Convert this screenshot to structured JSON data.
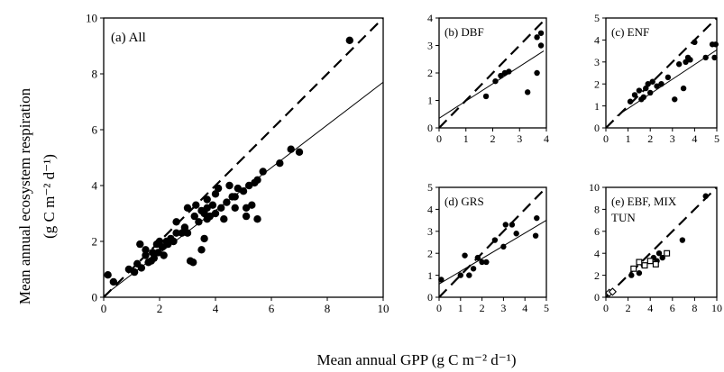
{
  "figure": {
    "ylabel_line1": "Mean annual ecosystem respiration",
    "ylabel_line2": "(g C m⁻² d⁻¹)",
    "xlabel": "Mean annual GPP (g C m⁻² d⁻¹)"
  },
  "chart_data": [
    {
      "id": "a",
      "type": "scatter",
      "label": "(a) All",
      "xlim": [
        0,
        10
      ],
      "ylim": [
        0,
        10
      ],
      "xticks": [
        0,
        2,
        4,
        6,
        8,
        10
      ],
      "yticks": [
        0,
        2,
        4,
        6,
        8,
        10
      ],
      "one_to_one": true,
      "fit": [
        [
          0,
          0.05
        ],
        [
          10,
          7.7
        ]
      ],
      "markers": [
        {
          "style": "filled",
          "points": [
            [
              0.15,
              0.8
            ],
            [
              0.35,
              0.55
            ],
            [
              0.9,
              1.0
            ],
            [
              1.1,
              0.9
            ],
            [
              1.2,
              1.2
            ],
            [
              1.3,
              1.9
            ],
            [
              1.35,
              1.05
            ],
            [
              1.5,
              1.5
            ],
            [
              1.5,
              1.7
            ],
            [
              1.6,
              1.25
            ],
            [
              1.7,
              1.3
            ],
            [
              1.75,
              1.6
            ],
            [
              1.8,
              1.4
            ],
            [
              1.9,
              1.9
            ],
            [
              1.95,
              1.6
            ],
            [
              2.0,
              2.0
            ],
            [
              2.1,
              1.8
            ],
            [
              2.15,
              1.5
            ],
            [
              2.25,
              2.0
            ],
            [
              2.3,
              1.9
            ],
            [
              2.4,
              2.1
            ],
            [
              2.5,
              2.0
            ],
            [
              2.6,
              2.3
            ],
            [
              2.6,
              2.7
            ],
            [
              2.8,
              2.3
            ],
            [
              2.9,
              2.5
            ],
            [
              3.0,
              2.3
            ],
            [
              3.0,
              3.2
            ],
            [
              3.1,
              1.3
            ],
            [
              3.2,
              1.25
            ],
            [
              3.25,
              2.9
            ],
            [
              3.3,
              3.3
            ],
            [
              3.4,
              2.7
            ],
            [
              3.5,
              3.1
            ],
            [
              3.5,
              1.7
            ],
            [
              3.6,
              2.1
            ],
            [
              3.6,
              3.0
            ],
            [
              3.7,
              2.8
            ],
            [
              3.7,
              3.2
            ],
            [
              3.7,
              3.5
            ],
            [
              3.8,
              2.9
            ],
            [
              3.9,
              3.3
            ],
            [
              4.0,
              3.0
            ],
            [
              4.0,
              3.7
            ],
            [
              4.1,
              3.9
            ],
            [
              4.2,
              3.2
            ],
            [
              4.3,
              2.8
            ],
            [
              4.4,
              3.4
            ],
            [
              4.5,
              4.0
            ],
            [
              4.6,
              3.6
            ],
            [
              4.7,
              3.2
            ],
            [
              4.7,
              3.6
            ],
            [
              4.8,
              3.9
            ],
            [
              5.0,
              3.8
            ],
            [
              5.1,
              2.9
            ],
            [
              5.1,
              3.2
            ],
            [
              5.2,
              4.0
            ],
            [
              5.3,
              3.3
            ],
            [
              5.4,
              4.1
            ],
            [
              5.5,
              2.8
            ],
            [
              5.5,
              4.2
            ],
            [
              5.7,
              4.5
            ],
            [
              6.3,
              4.8
            ],
            [
              6.7,
              5.3
            ],
            [
              7.0,
              5.2
            ],
            [
              8.8,
              9.2
            ]
          ]
        }
      ]
    },
    {
      "id": "b",
      "type": "scatter",
      "label": "(b) DBF",
      "xlim": [
        0,
        4
      ],
      "ylim": [
        0,
        4
      ],
      "xticks": [
        0,
        1,
        2,
        3,
        4
      ],
      "yticks": [
        0,
        1,
        2,
        3,
        4
      ],
      "one_to_one": true,
      "fit": [
        [
          0,
          0.35
        ],
        [
          3.9,
          2.8
        ]
      ],
      "markers": [
        {
          "style": "filled",
          "points": [
            [
              1.75,
              1.15
            ],
            [
              2.1,
              1.7
            ],
            [
              2.3,
              1.9
            ],
            [
              2.45,
              2.0
            ],
            [
              2.6,
              2.05
            ],
            [
              3.3,
              1.3
            ],
            [
              3.65,
              2.0
            ],
            [
              3.65,
              3.3
            ],
            [
              3.8,
              3.0
            ],
            [
              3.8,
              3.45
            ]
          ]
        }
      ]
    },
    {
      "id": "c",
      "type": "scatter",
      "label": "(c) ENF",
      "xlim": [
        0,
        5
      ],
      "ylim": [
        0,
        5
      ],
      "xticks": [
        0,
        1,
        2,
        3,
        4,
        5
      ],
      "yticks": [
        0,
        1,
        2,
        3,
        4,
        5
      ],
      "one_to_one": true,
      "fit": [
        [
          0.5,
          0.55
        ],
        [
          5,
          3.55
        ]
      ],
      "markers": [
        {
          "style": "filled",
          "points": [
            [
              1.1,
              1.2
            ],
            [
              1.3,
              1.5
            ],
            [
              1.5,
              1.7
            ],
            [
              1.6,
              1.3
            ],
            [
              1.7,
              1.4
            ],
            [
              1.8,
              1.8
            ],
            [
              1.9,
              2.0
            ],
            [
              2.0,
              1.6
            ],
            [
              2.1,
              2.1
            ],
            [
              2.3,
              1.9
            ],
            [
              2.5,
              2.0
            ],
            [
              2.8,
              2.3
            ],
            [
              3.1,
              1.3
            ],
            [
              3.3,
              2.9
            ],
            [
              3.5,
              1.8
            ],
            [
              3.6,
              3.0
            ],
            [
              3.7,
              3.2
            ],
            [
              3.8,
              3.1
            ],
            [
              4.0,
              3.9
            ],
            [
              4.5,
              3.2
            ],
            [
              4.8,
              3.8
            ],
            [
              4.9,
              3.2
            ],
            [
              4.95,
              3.8
            ]
          ]
        }
      ]
    },
    {
      "id": "d",
      "type": "scatter",
      "label": "(d) GRS",
      "xlim": [
        0,
        5
      ],
      "ylim": [
        0,
        5
      ],
      "xticks": [
        0,
        1,
        2,
        3,
        4,
        5
      ],
      "yticks": [
        0,
        1,
        2,
        3,
        4,
        5
      ],
      "one_to_one": true,
      "fit": [
        [
          0,
          0.6
        ],
        [
          5,
          3.5
        ]
      ],
      "markers": [
        {
          "style": "filled",
          "points": [
            [
              0.1,
              0.8
            ],
            [
              1.0,
              1.0
            ],
            [
              1.2,
              1.9
            ],
            [
              1.4,
              1.0
            ],
            [
              1.6,
              1.3
            ],
            [
              1.8,
              1.8
            ],
            [
              2.0,
              1.6
            ],
            [
              2.2,
              1.6
            ],
            [
              2.6,
              2.6
            ],
            [
              3.0,
              2.3
            ],
            [
              3.1,
              3.3
            ],
            [
              3.4,
              3.3
            ],
            [
              3.6,
              2.9
            ],
            [
              4.5,
              2.8
            ],
            [
              4.55,
              3.6
            ]
          ]
        }
      ]
    },
    {
      "id": "e",
      "type": "scatter",
      "label_line1": "(e) EBF, MIX",
      "label_line2": "TUN",
      "xlim": [
        0,
        10
      ],
      "ylim": [
        0,
        10
      ],
      "xticks": [
        0,
        2,
        4,
        6,
        8,
        10
      ],
      "yticks": [
        0,
        2,
        4,
        6,
        8,
        10
      ],
      "one_to_one": true,
      "fit": null,
      "markers": [
        {
          "style": "filled",
          "points": [
            [
              2.3,
              2.0
            ],
            [
              3.0,
              2.2
            ],
            [
              3.4,
              2.9
            ],
            [
              4.3,
              3.6
            ],
            [
              4.6,
              3.3
            ],
            [
              4.8,
              4.0
            ],
            [
              5.1,
              3.6
            ],
            [
              6.9,
              5.2
            ],
            [
              9.0,
              9.2
            ]
          ]
        },
        {
          "style": "open-square",
          "points": [
            [
              2.5,
              2.6
            ],
            [
              3.0,
              3.2
            ],
            [
              3.5,
              2.9
            ],
            [
              4.0,
              3.3
            ],
            [
              4.5,
              3.0
            ],
            [
              5.5,
              4.0
            ]
          ]
        },
        {
          "style": "open-diamond",
          "points": [
            [
              0.3,
              0.4
            ],
            [
              0.6,
              0.5
            ]
          ]
        }
      ]
    }
  ]
}
